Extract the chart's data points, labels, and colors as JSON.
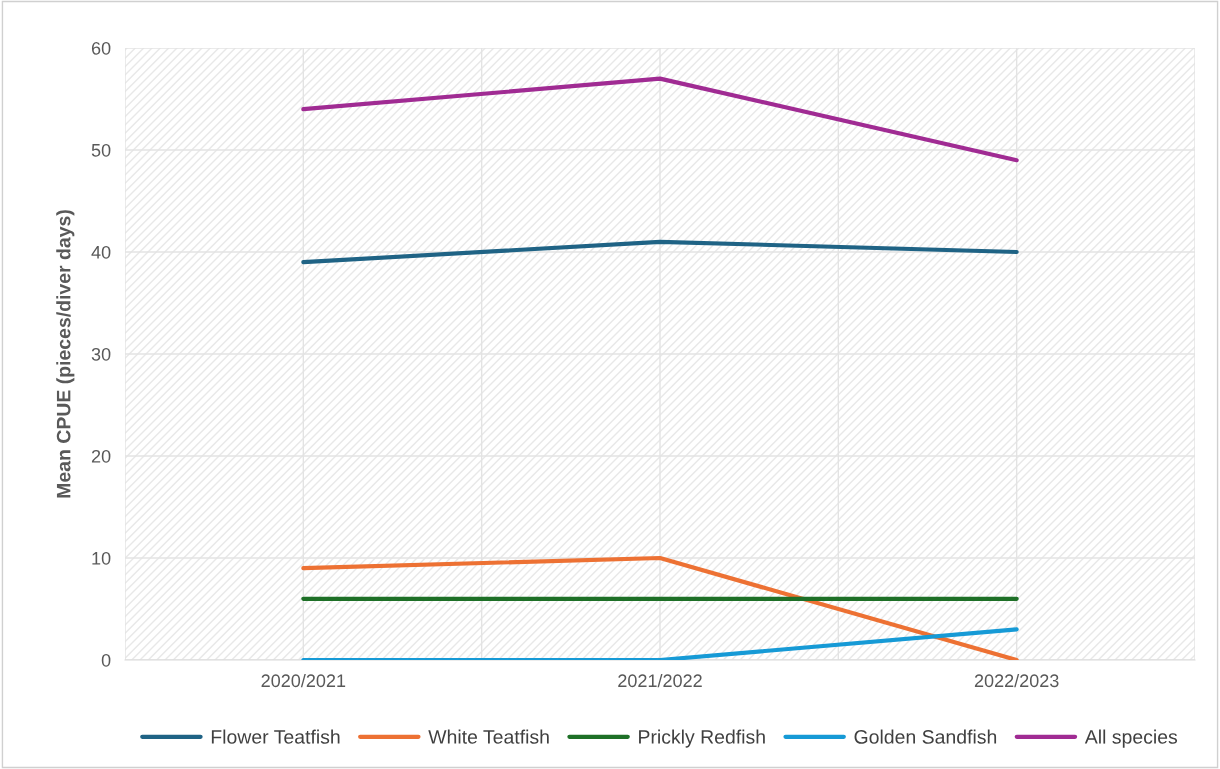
{
  "chart_data": {
    "type": "line",
    "ylabel": "Mean CPUE (pieces/diver days)",
    "categories": [
      "2020/2021",
      "2021/2022",
      "2022/2023"
    ],
    "series": [
      {
        "name": "Flower Teatfish",
        "color": "#1f6385",
        "values": [
          39,
          41,
          40
        ]
      },
      {
        "name": "White Teatfish",
        "color": "#ed7133",
        "values": [
          9,
          10,
          0
        ]
      },
      {
        "name": "Prickly Redfish",
        "color": "#1e7027",
        "values": [
          6,
          6,
          6
        ]
      },
      {
        "name": "Golden Sandfish",
        "color": "#169ad6",
        "values": [
          0,
          0,
          3
        ]
      },
      {
        "name": "All species",
        "color": "#a02b93",
        "values": [
          54,
          57,
          49
        ]
      }
    ],
    "ylim": [
      0,
      60
    ],
    "yticks": [
      0,
      10,
      20,
      30,
      40,
      50,
      60
    ],
    "grid": true,
    "legend": "bottom",
    "marker": "none",
    "line_style": "solid"
  }
}
